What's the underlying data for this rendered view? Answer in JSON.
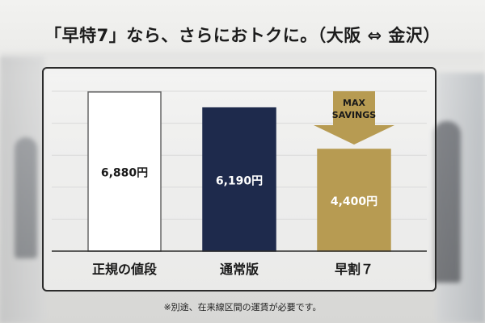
{
  "headline": "「早特7」なら、さらにおトクに。（大阪 ⇔ 金沢）",
  "footnote": "※別途、在来線区間の運賃が必要です。",
  "chart_data": {
    "type": "bar",
    "categories": [
      "正規の値段",
      "通常版",
      "早割７"
    ],
    "values": [
      6880,
      6190,
      4400
    ],
    "value_labels": [
      "6,880円",
      "6,190円",
      "4,400円"
    ],
    "ylim": [
      0,
      7400
    ],
    "grid": true,
    "annotation": {
      "text_lines": [
        "MAX",
        "SAVINGS"
      ],
      "target_category": "早割７"
    },
    "colors": {
      "bar_fills": [
        "#ffffff",
        "#1e2a4c",
        "#b79b52"
      ],
      "bar_strokes": [
        "#666666",
        "#1e2a4c",
        "#b79b52"
      ],
      "value_label_colors": [
        "#1a1a1a",
        "#ffffff",
        "#ffffff"
      ],
      "arrow": "#b79b52",
      "arrow_text": "#1a1a1a",
      "grid": "#d9d9d9",
      "baseline": "#2b2b2b",
      "category_label": "#1a1a1a"
    }
  }
}
